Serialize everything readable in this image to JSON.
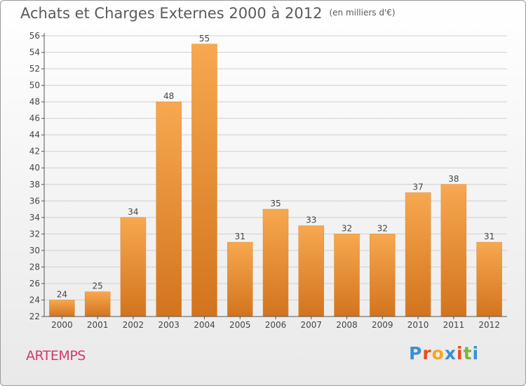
{
  "header": {
    "title": "Achats et Charges Externes 2000 à 2012",
    "subtitle": "(en milliers d'€)"
  },
  "footer": {
    "commune": "ARTEMPS",
    "logo": "Proxiti",
    "logo_colors": [
      "#3a8fd6",
      "#e94e1b",
      "#f5a623",
      "#3a8fd6",
      "#e94e1b",
      "#7cb342",
      "#3a8fd6"
    ]
  },
  "colors": {
    "bar_light": "#f7a850",
    "bar_dark": "#d2741d",
    "grid": "#cfcfcf",
    "axis": "#555555",
    "text": "#444444"
  },
  "chart_data": {
    "type": "bar",
    "categories": [
      "2000",
      "2001",
      "2002",
      "2003",
      "2004",
      "2005",
      "2006",
      "2007",
      "2008",
      "2009",
      "2010",
      "2011",
      "2012"
    ],
    "values": [
      24,
      25,
      34,
      48,
      55,
      31,
      35,
      33,
      32,
      32,
      37,
      38,
      31
    ],
    "ylim": [
      22,
      56
    ],
    "ytick_step": 2,
    "grid": true,
    "data_labels": true
  }
}
